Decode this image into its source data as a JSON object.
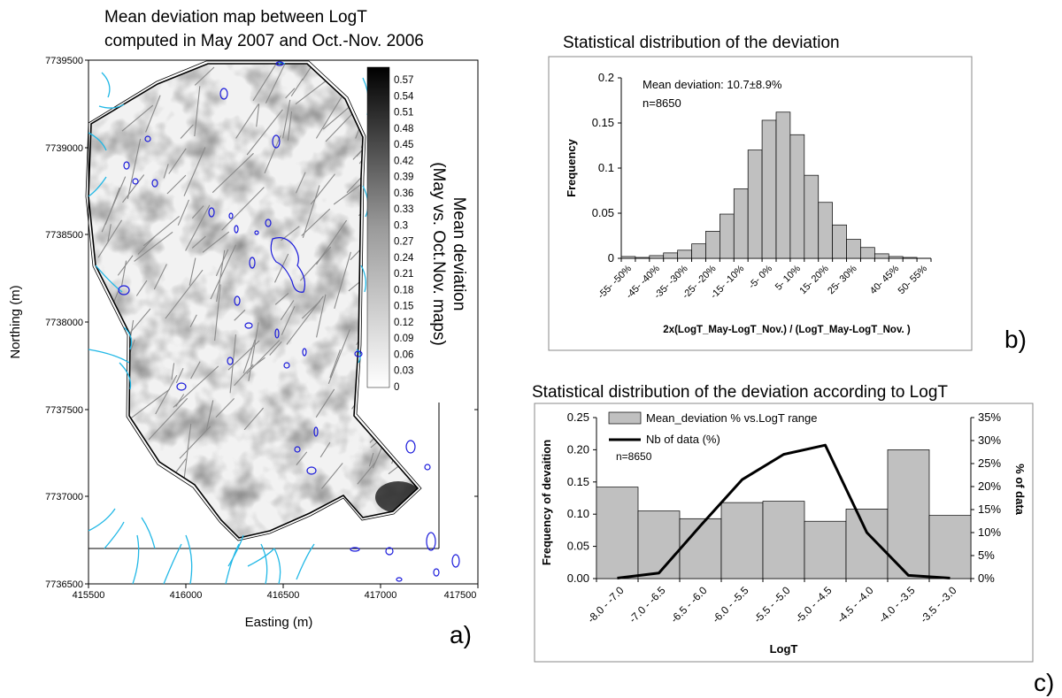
{
  "panel_a": {
    "title_line1": "Mean deviation map between LogT",
    "title_line2": "computed in May 2007 and Oct.-Nov. 2006",
    "xlabel": "Easting (m)",
    "ylabel": "Northing (m)",
    "xticks": [
      "415500",
      "416000",
      "416500",
      "417000",
      "417500"
    ],
    "yticks": [
      "7739500",
      "7739000",
      "7738500",
      "7738000",
      "7737500",
      "7737000",
      "7736500"
    ],
    "colorbar_ticks": [
      "0.57",
      "0.54",
      "0.51",
      "0.48",
      "0.45",
      "0.42",
      "0.39",
      "0.36",
      "0.33",
      "0.3",
      "0.27",
      "0.24",
      "0.21",
      "0.18",
      "0.15",
      "0.12",
      "0.09",
      "0.06",
      "0.03",
      "0"
    ],
    "colorbar_title_line1": "Mean deviation",
    "colorbar_title_line2": "(May vs. Oct.Nov. maps)",
    "panel_letter": "a)",
    "colors": {
      "contours": "#1a1adb",
      "streams": "#22b8e6",
      "faults": "#8a8a8a"
    }
  },
  "panel_b": {
    "title": "Statistical distribution of the deviation",
    "annotation_line1": "Mean deviation: 10.7±8.9%",
    "annotation_line2": "n=8650",
    "panel_letter": "b)"
  },
  "panel_c": {
    "title": "Statistical distribution of the deviation according to LogT",
    "annotation": "n=8650",
    "panel_letter": "c)"
  },
  "chart_data": [
    {
      "type": "bar",
      "title": "Statistical distribution of the deviation",
      "xlabel": "2x(LogT_May-LogT_Nov.) / (LogT_May-LogT_Nov. )",
      "ylabel": "Frequency",
      "ylim": [
        0,
        0.2
      ],
      "yticks": [
        "0",
        "0.05",
        "0.1",
        "0.15",
        "0.2"
      ],
      "categories": [
        "-55- -50%",
        "-50- -45%",
        "-45- -40%",
        "-40- -35%",
        "-35- -30%",
        "-30- -25%",
        "-25- -20%",
        "-20- -15%",
        "-15- -10%",
        "-10- -5%",
        "-5- 0%",
        "0- 5%",
        "5- 10%",
        "10- 15%",
        "15- 20%",
        "20- 25%",
        "25- 30%",
        "30- 35%",
        "35- 40%",
        "40- 45%",
        "45- 50%",
        "50- 55%"
      ],
      "x_tick_labels": [
        "-55- -50%",
        "-45- -40%",
        "-35- -30%",
        "-25- -20%",
        "-15- -10%",
        "-5- 0%",
        "5- 10%",
        "15- 20%",
        "25- 30%",
        "40- 45%",
        "50- 55%"
      ],
      "values": [
        0.002,
        0.001,
        0.003,
        0.006,
        0.009,
        0.016,
        0.03,
        0.049,
        0.077,
        0.12,
        0.153,
        0.162,
        0.137,
        0.092,
        0.062,
        0.037,
        0.021,
        0.012,
        0.005,
        0.002,
        0.001,
        0.0
      ],
      "bar_color": "#c0c0c0"
    },
    {
      "type": "bar",
      "title": "Statistical distribution of the deviation according to LogT",
      "xlabel": "LogT",
      "ylabel": "Frequency of devaition",
      "ylabel_right": "% of data",
      "ylim": [
        0,
        0.25
      ],
      "ylim_right": [
        0,
        35
      ],
      "yticks": [
        "0.00",
        "0.05",
        "0.10",
        "0.15",
        "0.20",
        "0.25"
      ],
      "yticks_right": [
        "0%",
        "5%",
        "10%",
        "15%",
        "20%",
        "25%",
        "30%",
        "35%"
      ],
      "categories": [
        "-8.0 - -7.0",
        "-7.0 - -6.5",
        "-6.5 - -6.0",
        "-6.0 - -5.5",
        "-5.5 - -5.0",
        "-5.0 - -4.5",
        "-4.5 - -4.0",
        "-4.0 - -3.5",
        "-3.5 - -3.0"
      ],
      "series": [
        {
          "name": "Mean_deviation % vs.LogT range",
          "type": "bar",
          "values": [
            0.142,
            0.105,
            0.093,
            0.118,
            0.12,
            0.089,
            0.108,
            0.2,
            0.098
          ],
          "color": "#c0c0c0"
        },
        {
          "name": "Nb of data (%)",
          "type": "line",
          "axis": "right",
          "values": [
            0.1,
            1.2,
            11.5,
            21.5,
            27.0,
            29.0,
            10.0,
            0.7,
            0.1
          ],
          "color": "#000000"
        }
      ],
      "legend": "top-left"
    }
  ]
}
